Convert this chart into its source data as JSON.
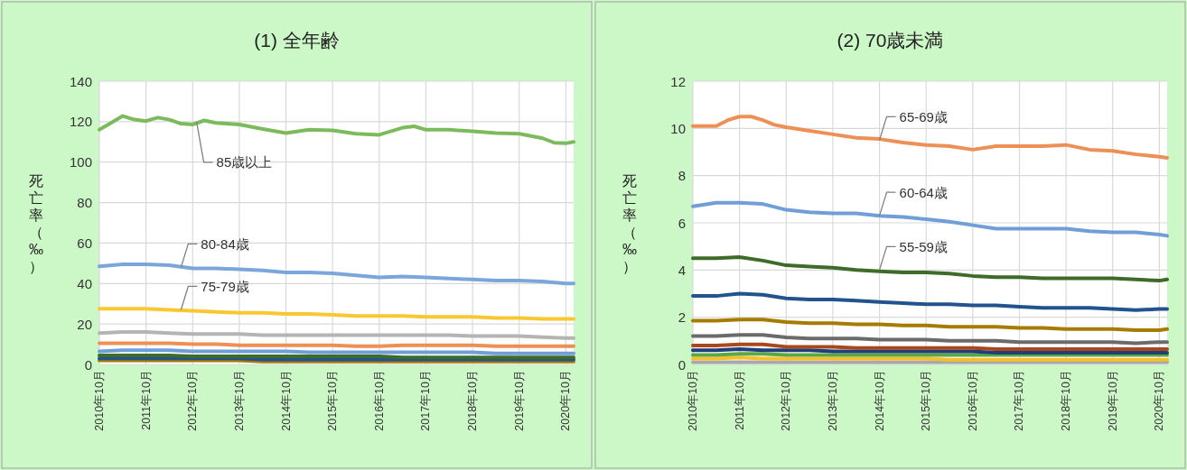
{
  "chart_data": [
    {
      "type": "line",
      "title": "(1) 全年齢",
      "ylabel": "死亡率（‰）",
      "grid": true,
      "x": [
        "2010-10",
        "2011-04",
        "2011-10",
        "2012-04",
        "2012-10",
        "2013-04",
        "2013-10",
        "2014-04",
        "2014-10",
        "2015-04",
        "2015-10",
        "2016-04",
        "2016-10",
        "2017-04",
        "2017-10",
        "2018-04",
        "2018-10",
        "2019-04",
        "2019-10",
        "2020-04",
        "2020-10",
        "2020-12"
      ],
      "xlim": [
        "2010-10",
        "2020-12"
      ],
      "xticks": [
        {
          "value": "2010-10",
          "label": "2010年10月"
        },
        {
          "value": "2011-10",
          "label": "2011年10月"
        },
        {
          "value": "2012-10",
          "label": "2012年10月"
        },
        {
          "value": "2013-10",
          "label": "2013年10月"
        },
        {
          "value": "2014-10",
          "label": "2014年10月"
        },
        {
          "value": "2015-10",
          "label": "2015年10月"
        },
        {
          "value": "2016-10",
          "label": "2016年10月"
        },
        {
          "value": "2017-10",
          "label": "2017年10月"
        },
        {
          "value": "2018-10",
          "label": "2018年10月"
        },
        {
          "value": "2019-10",
          "label": "2019年10月"
        },
        {
          "value": "2020-10",
          "label": "2020年10月"
        }
      ],
      "ylim": [
        0,
        140
      ],
      "yticks": [
        0,
        20,
        40,
        60,
        80,
        100,
        120,
        140
      ],
      "series": [
        {
          "color": "#a67c00",
          "values": [
            2,
            2,
            2,
            2,
            2,
            2,
            2,
            1.5,
            1.5,
            1.5,
            1.5,
            1.5,
            1.5,
            1.5,
            1.5,
            1.5,
            1.5,
            1.5,
            1.5,
            1.5,
            1.5,
            1.5
          ]
        },
        {
          "color": "#21538f",
          "values": [
            3,
            3,
            3,
            3,
            3,
            3,
            3,
            2.5,
            2.5,
            2.5,
            2.5,
            2.5,
            2.5,
            2.5,
            2.5,
            2.5,
            2.5,
            2.5,
            2.5,
            2.5,
            2.5,
            2.5
          ]
        },
        {
          "color": "#3e6b27",
          "values": [
            4.5,
            4.5,
            4.5,
            4.5,
            4,
            4,
            4,
            4,
            4,
            4,
            4,
            4,
            4,
            3.5,
            3.5,
            3.5,
            3.5,
            3.5,
            3.5,
            3.5,
            3.5,
            3.5
          ]
        },
        {
          "color": "#6f9ed8",
          "values": [
            6.5,
            7,
            7,
            7,
            6.5,
            6.5,
            6.5,
            6.5,
            6.5,
            6,
            6,
            6,
            6,
            6,
            6,
            6,
            6,
            5.5,
            5.5,
            5.5,
            5.5,
            5.5
          ]
        },
        {
          "color": "#ee9055",
          "values": [
            10.5,
            10.5,
            10.5,
            10.5,
            10,
            10,
            9.5,
            9.5,
            9.5,
            9.5,
            9.5,
            9,
            9,
            9.5,
            9.5,
            9.5,
            9.5,
            9,
            9,
            9,
            9,
            9
          ]
        },
        {
          "color": "#b4b4b4",
          "values": [
            15.5,
            16,
            16,
            15.5,
            15,
            15,
            15,
            14.5,
            14.5,
            14.5,
            14.5,
            14.5,
            14.5,
            14.5,
            14.5,
            14.5,
            14,
            14,
            14,
            13.5,
            13,
            13
          ]
        },
        {
          "color": "#fbc731",
          "values": [
            27.5,
            27.5,
            27.5,
            27,
            26.5,
            26,
            25.5,
            25.5,
            25,
            25,
            24.5,
            24,
            24,
            24,
            23.5,
            23.5,
            23.5,
            23,
            23,
            22.5,
            22.5,
            22.5
          ]
        },
        {
          "color": "#7aa6dc",
          "values": [
            48.5,
            49.5,
            49.5,
            49,
            47.5,
            47.5,
            47,
            46.5,
            45.5,
            45.5,
            45,
            44,
            43,
            43.5,
            43,
            42.5,
            42,
            41.5,
            41.5,
            41,
            40,
            40
          ]
        },
        {
          "color": "#7cbb5c",
          "x": [
            "2010-10",
            "2011-01",
            "2011-04",
            "2011-07",
            "2011-10",
            "2012-01",
            "2012-04",
            "2012-07",
            "2012-10",
            "2013-01",
            "2013-04",
            "2013-10",
            "2014-04",
            "2014-10",
            "2015-04",
            "2015-10",
            "2016-04",
            "2016-10",
            "2017-04",
            "2017-07",
            "2017-10",
            "2018-04",
            "2018-10",
            "2019-04",
            "2019-10",
            "2020-04",
            "2020-07",
            "2020-10",
            "2020-12"
          ],
          "values": [
            116,
            119.4,
            122.8,
            121,
            120.3,
            122,
            121,
            119,
            118.6,
            120.6,
            119.4,
            118.6,
            116.4,
            114.4,
            116,
            115.7,
            114,
            113.5,
            117,
            117.7,
            116,
            116,
            115.2,
            114.4,
            114,
            111.8,
            109.6,
            109.3,
            110
          ]
        }
      ],
      "annotations": [
        {
          "text": "85歳以上",
          "x": "2012-11",
          "y": 120
        },
        {
          "text": "80-84歳",
          "x": "2012-07",
          "y": 48
        },
        {
          "text": "75-79歳",
          "x": "2012-07",
          "y": 27
        }
      ]
    },
    {
      "type": "line",
      "title": "(2) 70歳未満",
      "ylabel": "死亡率（‰）",
      "grid": true,
      "x": [
        "2010-10",
        "2011-04",
        "2011-10",
        "2012-04",
        "2012-10",
        "2013-04",
        "2013-10",
        "2014-04",
        "2014-10",
        "2015-04",
        "2015-10",
        "2016-04",
        "2016-10",
        "2017-04",
        "2017-10",
        "2018-04",
        "2018-10",
        "2019-04",
        "2019-10",
        "2020-04",
        "2020-10",
        "2020-12"
      ],
      "xlim": [
        "2010-10",
        "2020-12"
      ],
      "xticks": [
        {
          "value": "2010-10",
          "label": "2010年10月"
        },
        {
          "value": "2011-10",
          "label": "2011年10月"
        },
        {
          "value": "2012-10",
          "label": "2012年10月"
        },
        {
          "value": "2013-10",
          "label": "2013年10月"
        },
        {
          "value": "2014-10",
          "label": "2014年10月"
        },
        {
          "value": "2015-10",
          "label": "2015年10月"
        },
        {
          "value": "2016-10",
          "label": "2016年10月"
        },
        {
          "value": "2017-10",
          "label": "2017年10月"
        },
        {
          "value": "2018-10",
          "label": "2018年10月"
        },
        {
          "value": "2019-10",
          "label": "2019年10月"
        },
        {
          "value": "2020-10",
          "label": "2020年10月"
        }
      ],
      "ylim": [
        0,
        12
      ],
      "yticks": [
        0,
        2,
        4,
        6,
        8,
        10,
        12
      ],
      "series": [
        {
          "color": "#a8a8a8",
          "values": [
            0.1,
            0.1,
            0.1,
            0.1,
            0.1,
            0.1,
            0.1,
            0.1,
            0.1,
            0.1,
            0.1,
            0.1,
            0.1,
            0.1,
            0.1,
            0.1,
            0.1,
            0.1,
            0.1,
            0.1,
            0.1,
            0.1
          ]
        },
        {
          "color": "#f5c02c",
          "values": [
            0.25,
            0.25,
            0.3,
            0.25,
            0.25,
            0.25,
            0.25,
            0.25,
            0.25,
            0.25,
            0.25,
            0.2,
            0.2,
            0.2,
            0.2,
            0.2,
            0.2,
            0.2,
            0.2,
            0.2,
            0.2,
            0.2
          ]
        },
        {
          "color": "#5aa845",
          "values": [
            0.4,
            0.4,
            0.45,
            0.45,
            0.4,
            0.4,
            0.4,
            0.4,
            0.4,
            0.4,
            0.4,
            0.4,
            0.4,
            0.4,
            0.4,
            0.4,
            0.4,
            0.4,
            0.4,
            0.4,
            0.4,
            0.4
          ]
        },
        {
          "color": "#203f7a",
          "values": [
            0.6,
            0.6,
            0.65,
            0.6,
            0.6,
            0.6,
            0.55,
            0.55,
            0.55,
            0.55,
            0.55,
            0.55,
            0.55,
            0.5,
            0.5,
            0.5,
            0.5,
            0.5,
            0.5,
            0.5,
            0.5,
            0.5
          ]
        },
        {
          "color": "#a9481c",
          "values": [
            0.8,
            0.8,
            0.85,
            0.85,
            0.75,
            0.75,
            0.75,
            0.7,
            0.7,
            0.7,
            0.7,
            0.7,
            0.7,
            0.65,
            0.65,
            0.65,
            0.65,
            0.65,
            0.65,
            0.65,
            0.65,
            0.65
          ]
        },
        {
          "color": "#6b6b6b",
          "values": [
            1.2,
            1.2,
            1.25,
            1.25,
            1.15,
            1.1,
            1.1,
            1.1,
            1.05,
            1.05,
            1.05,
            1,
            1,
            1,
            0.95,
            0.95,
            0.95,
            0.95,
            0.95,
            0.9,
            0.95,
            0.95
          ]
        },
        {
          "color": "#a67c00",
          "values": [
            1.85,
            1.85,
            1.9,
            1.9,
            1.8,
            1.75,
            1.75,
            1.7,
            1.7,
            1.65,
            1.65,
            1.6,
            1.6,
            1.6,
            1.55,
            1.55,
            1.5,
            1.5,
            1.5,
            1.45,
            1.45,
            1.5
          ]
        },
        {
          "color": "#21538f",
          "values": [
            2.9,
            2.9,
            3,
            2.95,
            2.8,
            2.75,
            2.75,
            2.7,
            2.65,
            2.6,
            2.55,
            2.55,
            2.5,
            2.5,
            2.45,
            2.4,
            2.4,
            2.4,
            2.35,
            2.3,
            2.35,
            2.35
          ]
        },
        {
          "color": "#3e6b27",
          "values": [
            4.5,
            4.5,
            4.55,
            4.4,
            4.2,
            4.15,
            4.1,
            4,
            3.95,
            3.9,
            3.9,
            3.85,
            3.75,
            3.7,
            3.7,
            3.65,
            3.65,
            3.65,
            3.65,
            3.6,
            3.55,
            3.6
          ]
        },
        {
          "color": "#6f9ed8",
          "values": [
            6.7,
            6.85,
            6.85,
            6.8,
            6.55,
            6.45,
            6.4,
            6.4,
            6.3,
            6.25,
            6.15,
            6.05,
            5.9,
            5.75,
            5.75,
            5.75,
            5.75,
            5.65,
            5.6,
            5.6,
            5.5,
            5.45
          ]
        },
        {
          "color": "#ee9055",
          "x": [
            "2010-10",
            "2011-01",
            "2011-04",
            "2011-07",
            "2011-10",
            "2012-01",
            "2012-04",
            "2012-07",
            "2012-10",
            "2013-04",
            "2013-10",
            "2014-04",
            "2014-10",
            "2015-04",
            "2015-10",
            "2016-04",
            "2016-10",
            "2017-04",
            "2017-10",
            "2018-04",
            "2018-10",
            "2019-04",
            "2019-10",
            "2020-04",
            "2020-10",
            "2020-12"
          ],
          "values": [
            10.1,
            10.1,
            10.1,
            10.35,
            10.5,
            10.5,
            10.35,
            10.15,
            10.05,
            9.9,
            9.75,
            9.6,
            9.55,
            9.4,
            9.3,
            9.25,
            9.1,
            9.25,
            9.25,
            9.25,
            9.3,
            9.1,
            9.05,
            8.9,
            8.8,
            8.75
          ]
        }
      ],
      "annotations": [
        {
          "text": "65-69歳",
          "x": "2014-10",
          "y": 9.5
        },
        {
          "text": "60-64歳",
          "x": "2014-10",
          "y": 6.3
        },
        {
          "text": "55-59歳",
          "x": "2014-10",
          "y": 4
        }
      ]
    }
  ]
}
